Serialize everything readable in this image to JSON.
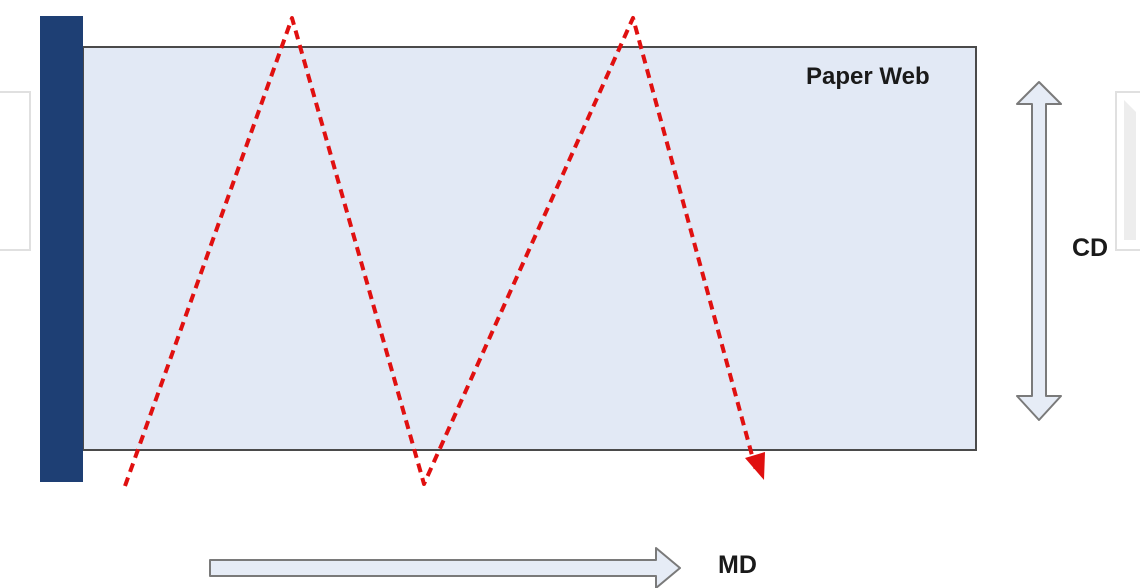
{
  "diagram": {
    "web_label": "Paper Web",
    "cd_label": "CD",
    "md_label": "MD"
  },
  "colors": {
    "web_fill": "#e2e9f5",
    "web_stroke": "#4a4a4a",
    "headbox": "#1e3f74",
    "scan_path": "#e01010",
    "arrow_fill": "#e6ecf6",
    "arrow_stroke": "#7a7a7a",
    "watermark": "#e0e0e0"
  }
}
